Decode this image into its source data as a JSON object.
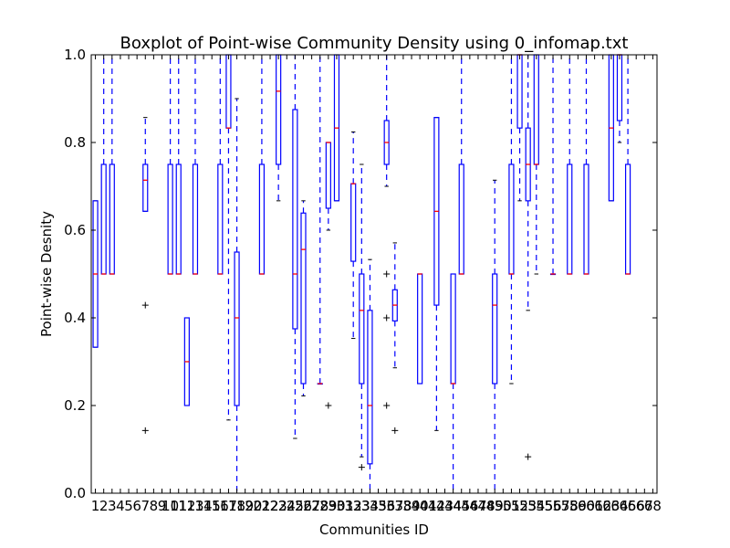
{
  "chart_data": {
    "type": "box",
    "title": "Boxplot of Point-wise Community Density using 0_infomap.txt",
    "xlabel": "Communities ID",
    "ylabel": "Point-wise Desnity",
    "ylim": [
      0,
      1
    ],
    "yticks": [
      "0.0",
      "0.2",
      "0.4",
      "0.6",
      "0.8",
      "1.0"
    ],
    "xlim": [
      0.5,
      68.5
    ],
    "categories": [
      "1",
      "2",
      "3",
      "4",
      "5",
      "6",
      "7",
      "8",
      "9",
      "10",
      "11",
      "12",
      "13",
      "14",
      "15",
      "16",
      "17",
      "18",
      "19",
      "20",
      "21",
      "22",
      "23",
      "24",
      "25",
      "26",
      "27",
      "28",
      "29",
      "30",
      "31",
      "32",
      "33",
      "34",
      "35",
      "36",
      "37",
      "38",
      "39",
      "40",
      "41",
      "42",
      "43",
      "44",
      "45",
      "46",
      "47",
      "48",
      "49",
      "50",
      "51",
      "52",
      "53",
      "54",
      "55",
      "56",
      "57",
      "58",
      "59",
      "60",
      "61",
      "62",
      "63",
      "64",
      "65",
      "66",
      "67",
      "68"
    ],
    "colors": {
      "box": "#0000ff",
      "median": "#ff0000",
      "whisker": "#0000ff",
      "flier": "#000000"
    },
    "boxes": [
      {
        "id": 1,
        "wlo": 0.333,
        "q1": 0.333,
        "med": 0.5,
        "q3": 0.667,
        "whi": 0.667,
        "fliers": []
      },
      {
        "id": 2,
        "wlo": 0.5,
        "q1": 0.5,
        "med": 0.5,
        "q3": 0.75,
        "whi": 1.0,
        "fliers": []
      },
      {
        "id": 3,
        "wlo": 0.5,
        "q1": 0.5,
        "med": 0.5,
        "q3": 0.75,
        "whi": 1.0,
        "fliers": []
      },
      {
        "id": 7,
        "wlo": 0.643,
        "q1": 0.643,
        "med": 0.714,
        "q3": 0.75,
        "whi": 0.857,
        "fliers": [
          0.429,
          0.143
        ]
      },
      {
        "id": 10,
        "wlo": 0.5,
        "q1": 0.5,
        "med": 0.5,
        "q3": 0.75,
        "whi": 1.0,
        "fliers": []
      },
      {
        "id": 11,
        "wlo": 0.5,
        "q1": 0.5,
        "med": 0.5,
        "q3": 0.75,
        "whi": 1.0,
        "fliers": []
      },
      {
        "id": 12,
        "wlo": 0.2,
        "q1": 0.2,
        "med": 0.3,
        "q3": 0.4,
        "whi": 0.4,
        "fliers": []
      },
      {
        "id": 13,
        "wlo": 0.5,
        "q1": 0.5,
        "med": 0.5,
        "q3": 0.75,
        "whi": 1.0,
        "fliers": []
      },
      {
        "id": 16,
        "wlo": 0.5,
        "q1": 0.5,
        "med": 0.5,
        "q3": 0.75,
        "whi": 1.0,
        "fliers": []
      },
      {
        "id": 17,
        "wlo": 0.167,
        "q1": 0.833,
        "med": 0.833,
        "q3": 1.0,
        "whi": 1.0,
        "fliers": []
      },
      {
        "id": 18,
        "wlo": 0.0,
        "q1": 0.2,
        "med": 0.4,
        "q3": 0.55,
        "whi": 0.9,
        "fliers": []
      },
      {
        "id": 21,
        "wlo": 0.5,
        "q1": 0.5,
        "med": 0.5,
        "q3": 0.75,
        "whi": 1.0,
        "fliers": []
      },
      {
        "id": 23,
        "wlo": 0.667,
        "q1": 0.75,
        "med": 0.917,
        "q3": 1.0,
        "whi": 1.0,
        "fliers": []
      },
      {
        "id": 25,
        "wlo": 0.125,
        "q1": 0.375,
        "med": 0.5,
        "q3": 0.875,
        "whi": 1.0,
        "fliers": []
      },
      {
        "id": 26,
        "wlo": 0.222,
        "q1": 0.25,
        "med": 0.556,
        "q3": 0.639,
        "whi": 0.667,
        "fliers": []
      },
      {
        "id": 28,
        "wlo": 0.25,
        "q1": 0.25,
        "med": 0.25,
        "q3": 0.25,
        "whi": 1.0,
        "fliers": []
      },
      {
        "id": 29,
        "wlo": 0.6,
        "q1": 0.65,
        "med": 0.8,
        "q3": 0.8,
        "whi": 0.8,
        "fliers": [
          0.2
        ]
      },
      {
        "id": 30,
        "wlo": 0.667,
        "q1": 0.667,
        "med": 0.833,
        "q3": 1.0,
        "whi": 1.0,
        "fliers": []
      },
      {
        "id": 32,
        "wlo": 0.353,
        "q1": 0.529,
        "med": 0.706,
        "q3": 0.706,
        "whi": 0.824,
        "fliers": []
      },
      {
        "id": 33,
        "wlo": 0.083,
        "q1": 0.25,
        "med": 0.417,
        "q3": 0.5,
        "whi": 0.75,
        "fliers": [
          0.059
        ]
      },
      {
        "id": 34,
        "wlo": 0.0,
        "q1": 0.067,
        "med": 0.2,
        "q3": 0.417,
        "whi": 0.533,
        "fliers": []
      },
      {
        "id": 36,
        "wlo": 0.7,
        "q1": 0.75,
        "med": 0.8,
        "q3": 0.85,
        "whi": 1.0,
        "fliers": [
          0.5,
          0.4,
          0.2
        ]
      },
      {
        "id": 37,
        "wlo": 0.286,
        "q1": 0.393,
        "med": 0.429,
        "q3": 0.464,
        "whi": 0.571,
        "fliers": [
          0.143
        ]
      },
      {
        "id": 40,
        "wlo": 0.25,
        "q1": 0.25,
        "med": 0.5,
        "q3": 0.5,
        "whi": 0.5,
        "fliers": []
      },
      {
        "id": 42,
        "wlo": 0.143,
        "q1": 0.429,
        "med": 0.643,
        "q3": 0.857,
        "whi": 0.857,
        "fliers": []
      },
      {
        "id": 44,
        "wlo": 0.0,
        "q1": 0.25,
        "med": 0.25,
        "q3": 0.5,
        "whi": 0.5,
        "fliers": []
      },
      {
        "id": 45,
        "wlo": 0.5,
        "q1": 0.5,
        "med": 0.5,
        "q3": 0.75,
        "whi": 1.0,
        "fliers": []
      },
      {
        "id": 49,
        "wlo": 0.0,
        "q1": 0.25,
        "med": 0.429,
        "q3": 0.5,
        "whi": 0.714,
        "fliers": []
      },
      {
        "id": 51,
        "wlo": 0.25,
        "q1": 0.5,
        "med": 0.5,
        "q3": 0.75,
        "whi": 1.0,
        "fliers": []
      },
      {
        "id": 52,
        "wlo": 0.667,
        "q1": 0.833,
        "med": 1.0,
        "q3": 1.0,
        "whi": 1.0,
        "fliers": []
      },
      {
        "id": 53,
        "wlo": 0.417,
        "q1": 0.667,
        "med": 0.75,
        "q3": 0.833,
        "whi": 1.0,
        "fliers": [
          0.083
        ]
      },
      {
        "id": 54,
        "wlo": 0.5,
        "q1": 0.75,
        "med": 0.75,
        "q3": 1.0,
        "whi": 1.0,
        "fliers": []
      },
      {
        "id": 56,
        "wlo": 0.5,
        "q1": 0.5,
        "med": 0.5,
        "q3": 0.5,
        "whi": 1.0,
        "fliers": []
      },
      {
        "id": 58,
        "wlo": 0.5,
        "q1": 0.5,
        "med": 0.5,
        "q3": 0.75,
        "whi": 1.0,
        "fliers": []
      },
      {
        "id": 60,
        "wlo": 0.5,
        "q1": 0.5,
        "med": 0.5,
        "q3": 0.75,
        "whi": 1.0,
        "fliers": []
      },
      {
        "id": 63,
        "wlo": 0.667,
        "q1": 0.667,
        "med": 0.833,
        "q3": 1.0,
        "whi": 1.0,
        "fliers": []
      },
      {
        "id": 64,
        "wlo": 0.8,
        "q1": 0.85,
        "med": 1.0,
        "q3": 1.0,
        "whi": 1.0,
        "fliers": []
      },
      {
        "id": 65,
        "wlo": 0.5,
        "q1": 0.5,
        "med": 0.5,
        "q3": 0.75,
        "whi": 1.0,
        "fliers": []
      }
    ]
  }
}
